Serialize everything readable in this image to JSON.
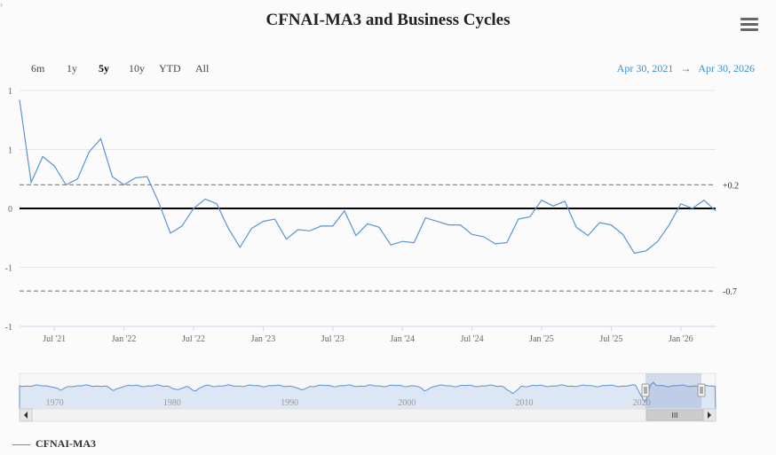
{
  "title": "CFNAI-MA3 and Business Cycles",
  "range_buttons": [
    {
      "label": "6m",
      "active": false
    },
    {
      "label": "1y",
      "active": false
    },
    {
      "label": "5y",
      "active": true
    },
    {
      "label": "10y",
      "active": false
    },
    {
      "label": "YTD",
      "active": false
    },
    {
      "label": "All",
      "active": false
    }
  ],
  "date_range": {
    "from": "Apr 30, 2021",
    "arrow": "→",
    "to": "Apr 30, 2026"
  },
  "colors": {
    "series": "#5a93d6",
    "navigator_fill": "#dde6f4",
    "zero_line": "#000000",
    "threshold": "#888888"
  },
  "legend": {
    "label": "CFNAI-MA3"
  },
  "navigator": {
    "year_labels": [
      "1970",
      "1980",
      "1990",
      "2000",
      "2010",
      "2020"
    ],
    "scroll_thumb_label": "III"
  },
  "chart_data": {
    "type": "line",
    "x_tick_labels": [
      "Jul '21",
      "Jan '22",
      "Jul '22",
      "Jan '23",
      "Jul '23",
      "Jan '24",
      "Jul '24",
      "Jan '25",
      "Jul '25",
      "Jan '26"
    ],
    "y_tick_labels": [
      "1",
      "1",
      "0",
      "-1",
      "-1"
    ],
    "ylim": [
      -1.0,
      1.0
    ],
    "threshold_lines": [
      {
        "label": "+0.2",
        "value": 0.2
      },
      {
        "label": "-0.7",
        "value": -0.7
      }
    ],
    "series": [
      {
        "name": "CFNAI-MA3",
        "x": [
          "2021-04",
          "2021-05",
          "2021-06",
          "2021-07",
          "2021-08",
          "2021-09",
          "2021-10",
          "2021-11",
          "2021-12",
          "2022-01",
          "2022-02",
          "2022-03",
          "2022-04",
          "2022-05",
          "2022-06",
          "2022-07",
          "2022-08",
          "2022-09",
          "2022-10",
          "2022-11",
          "2022-12",
          "2023-01",
          "2023-02",
          "2023-03",
          "2023-04",
          "2023-05",
          "2023-06",
          "2023-07",
          "2023-08",
          "2023-09",
          "2023-10",
          "2023-11",
          "2023-12",
          "2024-01",
          "2024-02",
          "2024-03",
          "2024-04",
          "2024-05",
          "2024-06",
          "2024-07",
          "2024-08",
          "2024-09",
          "2024-10",
          "2024-11",
          "2024-12",
          "2025-01",
          "2025-02",
          "2025-03",
          "2025-04",
          "2025-05",
          "2025-06",
          "2025-07",
          "2025-08",
          "2025-09",
          "2025-10",
          "2025-11",
          "2025-12",
          "2026-01",
          "2026-02",
          "2026-03",
          "2026-04"
        ],
        "values": [
          0.92,
          0.22,
          0.44,
          0.36,
          0.2,
          0.25,
          0.48,
          0.59,
          0.27,
          0.2,
          0.26,
          0.27,
          0.05,
          -0.21,
          -0.15,
          0.0,
          0.08,
          0.04,
          -0.17,
          -0.33,
          -0.17,
          -0.11,
          -0.09,
          -0.26,
          -0.18,
          -0.19,
          -0.15,
          -0.15,
          -0.02,
          -0.23,
          -0.13,
          -0.16,
          -0.31,
          -0.28,
          -0.29,
          -0.08,
          -0.11,
          -0.14,
          -0.14,
          -0.22,
          -0.24,
          -0.3,
          -0.29,
          -0.09,
          -0.07,
          0.07,
          0.02,
          0.06,
          -0.16,
          -0.23,
          -0.12,
          -0.14,
          -0.22,
          -0.38,
          -0.36,
          -0.28,
          -0.14,
          0.04,
          0.0,
          0.07,
          -0.02
        ]
      }
    ]
  }
}
